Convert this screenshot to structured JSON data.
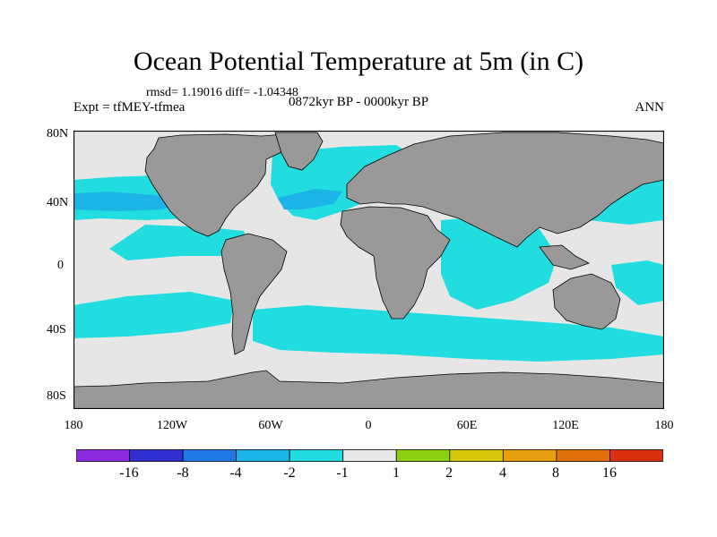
{
  "title": "Ocean Potential Temperature at 5m (in C)",
  "stats": "rmsd= 1.19016 diff= -1.04348",
  "expt_label": "Expt = tfMEY-tfmea",
  "period_label": "0872kyr BP - 0000kyr BP",
  "season_label": "ANN",
  "lat_ticks": [
    "80N",
    "40N",
    "0",
    "40S",
    "80S"
  ],
  "lon_ticks": [
    "180",
    "120W",
    "60W",
    "0",
    "60E",
    "120E",
    "180"
  ],
  "colorbar": {
    "colors": [
      "#8a2be2",
      "#3030d0",
      "#1e78e6",
      "#1cb4e6",
      "#22dde0",
      "#e8e8e8",
      "#8cd012",
      "#d6c80c",
      "#e8a010",
      "#e0700a",
      "#d83010"
    ],
    "labels": [
      "-16",
      "-8",
      "-4",
      "-2",
      "-1",
      "1",
      "2",
      "4",
      "8",
      "16"
    ]
  },
  "land_color": "#999999",
  "ocean_neutral_color": "#e6e6e6",
  "anomaly_colors": {
    "weak_cool": "#22dde0",
    "moderate_cool": "#1cb4e6",
    "strong_cool": "#1e78e6"
  }
}
